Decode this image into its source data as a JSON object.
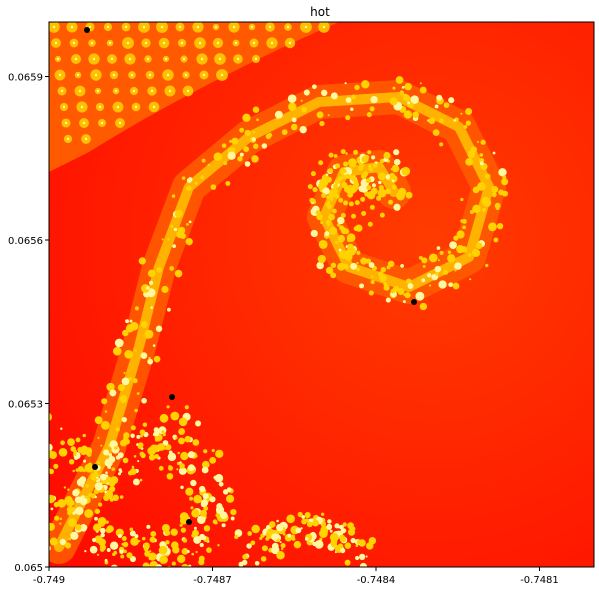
{
  "chart_data": {
    "type": "heatmap",
    "title": "hot",
    "colormap": "hot",
    "xlabel": "",
    "ylabel": "",
    "xlim": [
      -0.749,
      -0.748
    ],
    "ylim": [
      0.065,
      0.066
    ],
    "x_ticks": [
      {
        "value": -0.749,
        "label": "-0.749"
      },
      {
        "value": -0.7487,
        "label": "-0.7487"
      },
      {
        "value": -0.7484,
        "label": "-0.7484"
      },
      {
        "value": -0.7481,
        "label": "-0.7481"
      }
    ],
    "y_ticks": [
      {
        "value": 0.065,
        "label": "0.065"
      },
      {
        "value": 0.0653,
        "label": "0.0653"
      },
      {
        "value": 0.0656,
        "label": "0.0656"
      },
      {
        "value": 0.0659,
        "label": "0.0659"
      }
    ],
    "grid": false,
    "legend": "none",
    "colors": {
      "background": "#ff1a00",
      "band": "#ff5a00",
      "filament": "#ffd200",
      "hot_core": "#fff8a0",
      "interior": "#000000"
    }
  }
}
